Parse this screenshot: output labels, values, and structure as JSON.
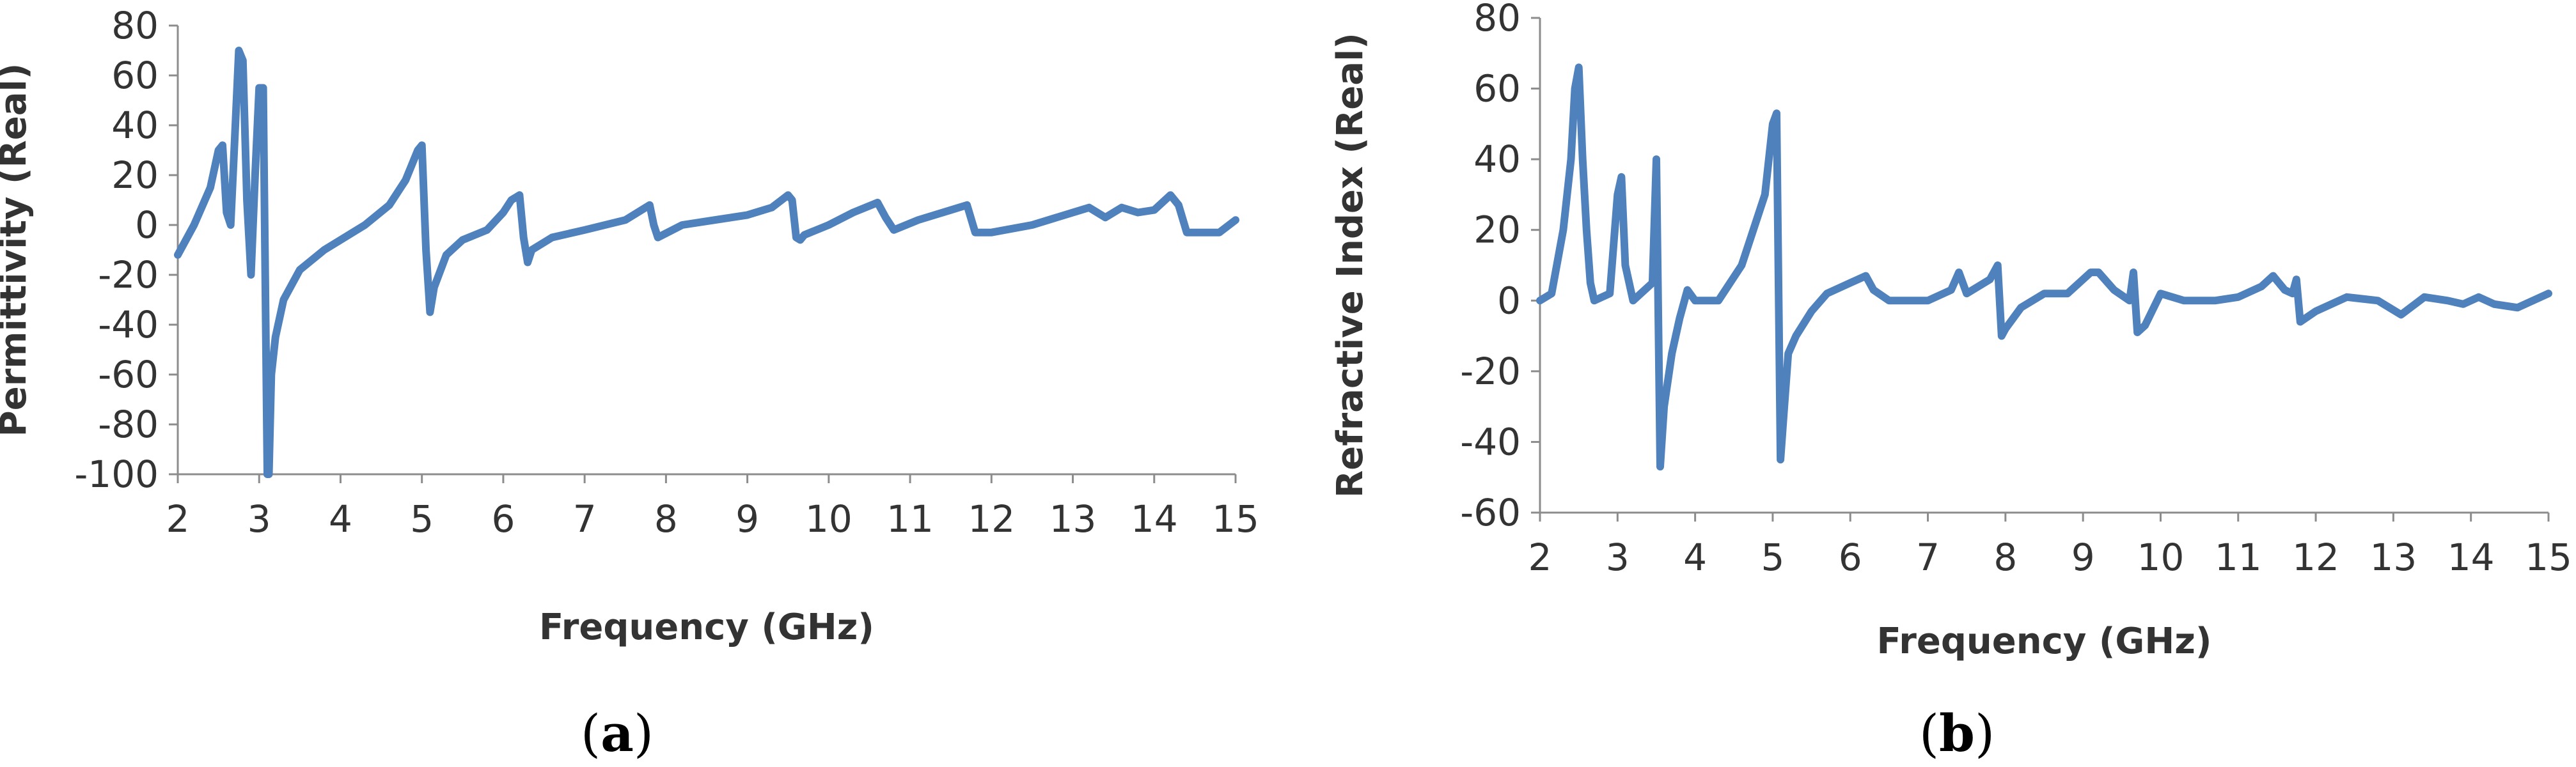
{
  "chart_data": [
    {
      "type": "line",
      "caption": "(a)",
      "xlabel": "Frequency (GHz)",
      "ylabel": "Permittivity (Real)",
      "xlim": [
        2,
        15
      ],
      "ylim": [
        -100,
        80
      ],
      "xticks": [
        "2",
        "3",
        "4",
        "5",
        "6",
        "7",
        "8",
        "9",
        "10",
        "11",
        "12",
        "13",
        "14",
        "15"
      ],
      "yticks": [
        "80",
        "60",
        "40",
        "20",
        "0",
        "-20",
        "-40",
        "-60",
        "-80",
        "-100"
      ],
      "series": [
        {
          "color": "#4F81BD",
          "x": [
            2.0,
            2.2,
            2.4,
            2.5,
            2.55,
            2.6,
            2.65,
            2.7,
            2.75,
            2.8,
            2.85,
            2.9,
            2.95,
            3.0,
            3.05,
            3.1,
            3.12,
            3.15,
            3.2,
            3.3,
            3.5,
            3.8,
            4.0,
            4.3,
            4.6,
            4.8,
            4.95,
            5.0,
            5.05,
            5.1,
            5.15,
            5.3,
            5.5,
            5.8,
            6.0,
            6.1,
            6.2,
            6.25,
            6.3,
            6.35,
            6.6,
            7.0,
            7.5,
            7.8,
            7.85,
            7.9,
            8.2,
            8.6,
            9.0,
            9.3,
            9.5,
            9.55,
            9.6,
            9.65,
            9.7,
            10.0,
            10.3,
            10.6,
            10.7,
            10.8,
            11.1,
            11.5,
            11.7,
            11.8,
            12.0,
            12.5,
            13.0,
            13.2,
            13.4,
            13.6,
            13.8,
            14.0,
            14.2,
            14.3,
            14.4,
            14.6,
            14.8,
            15.0
          ],
          "y": [
            -12,
            0,
            15,
            30,
            32,
            5,
            0,
            35,
            70,
            66,
            10,
            -20,
            20,
            55,
            55,
            -100,
            -100,
            -60,
            -45,
            -30,
            -18,
            -10,
            -6,
            0,
            8,
            18,
            30,
            32,
            -10,
            -35,
            -25,
            -12,
            -6,
            -2,
            5,
            10,
            12,
            -5,
            -15,
            -10,
            -5,
            -2,
            2,
            8,
            0,
            -5,
            0,
            2,
            4,
            7,
            12,
            10,
            -5,
            -6,
            -4,
            0,
            5,
            9,
            3,
            -2,
            2,
            6,
            8,
            -3,
            -3,
            0,
            5,
            7,
            3,
            7,
            5,
            6,
            12,
            8,
            -3,
            -3,
            -3,
            2
          ]
        }
      ]
    },
    {
      "type": "line",
      "caption": "(b)",
      "xlabel": "Frequency (GHz)",
      "ylabel": "Refractive Index (Real)",
      "xlim": [
        2,
        15
      ],
      "ylim": [
        -60,
        80
      ],
      "xticks": [
        "2",
        "3",
        "4",
        "5",
        "6",
        "7",
        "8",
        "9",
        "10",
        "11",
        "12",
        "13",
        "14",
        "15"
      ],
      "yticks": [
        "80",
        "60",
        "40",
        "20",
        "0",
        "-20",
        "-40",
        "-60"
      ],
      "series": [
        {
          "color": "#4F81BD",
          "x": [
            2.0,
            2.15,
            2.3,
            2.4,
            2.45,
            2.5,
            2.55,
            2.6,
            2.65,
            2.7,
            2.9,
            3.0,
            3.05,
            3.1,
            3.2,
            3.3,
            3.45,
            3.5,
            3.55,
            3.6,
            3.7,
            3.8,
            3.9,
            4.0,
            4.3,
            4.6,
            4.9,
            5.0,
            5.05,
            5.1,
            5.15,
            5.2,
            5.3,
            5.5,
            5.7,
            6.0,
            6.2,
            6.3,
            6.5,
            7.0,
            7.3,
            7.4,
            7.5,
            7.8,
            7.9,
            7.95,
            8.0,
            8.2,
            8.5,
            8.8,
            9.1,
            9.2,
            9.4,
            9.6,
            9.65,
            9.7,
            9.8,
            10.0,
            10.3,
            10.7,
            11.0,
            11.3,
            11.45,
            11.6,
            11.7,
            11.75,
            11.8,
            12.0,
            12.4,
            12.8,
            13.1,
            13.4,
            13.7,
            13.9,
            14.1,
            14.3,
            14.6,
            15.0
          ],
          "y": [
            0,
            2,
            20,
            40,
            60,
            66,
            40,
            20,
            5,
            0,
            2,
            30,
            35,
            10,
            0,
            2,
            5,
            40,
            -47,
            -30,
            -15,
            -5,
            3,
            0,
            0,
            10,
            30,
            50,
            53,
            -45,
            -30,
            -15,
            -10,
            -3,
            2,
            5,
            7,
            3,
            0,
            0,
            3,
            8,
            2,
            6,
            10,
            -10,
            -8,
            -2,
            2,
            2,
            8,
            8,
            3,
            0,
            8,
            -9,
            -7,
            2,
            0,
            0,
            1,
            4,
            7,
            3,
            2,
            6,
            -6,
            -3,
            1,
            0,
            -4,
            1,
            0,
            -1,
            1,
            -1,
            -2,
            2
          ]
        }
      ]
    }
  ]
}
